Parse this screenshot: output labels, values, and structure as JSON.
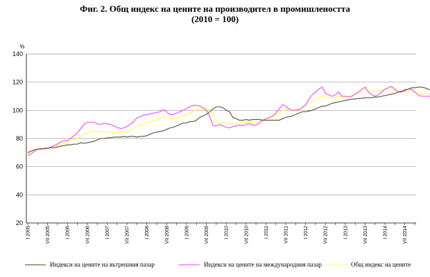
{
  "title_line1": "Фиг. 2. Общ индекс на цените на производител в промишлеността",
  "title_line2": "(2010 = 100)",
  "chart_data": {
    "type": "line",
    "unit": "%",
    "ylim": [
      20,
      140
    ],
    "yticks": [
      20,
      40,
      60,
      80,
      100,
      120,
      140
    ],
    "grid": "horizontal",
    "legend_position": "bottom",
    "x_tick_labels": [
      "I 2005",
      "VII 2005",
      "I 2006",
      "VII 2006",
      "I 2007",
      "VII 2007",
      "I 2008",
      "VII 2008",
      "I 2009",
      "VII 2009",
      "I 2010",
      "VII 2010",
      "I 2011",
      "VII 2011",
      "I 2012",
      "VII 2012",
      "I 2013",
      "VII 2013",
      "I 2014",
      "VII 2014"
    ],
    "x_start": "2005-01",
    "x_end": "2014-10",
    "series": [
      {
        "name": "Индекси на цените на вътрешния пазар",
        "color": "#505030",
        "values": [
          70,
          71,
          72,
          72.5,
          72.5,
          73,
          73,
          73.5,
          73.5,
          74,
          74.5,
          75,
          75.5,
          75.5,
          76,
          76,
          77,
          76.5,
          77,
          77.5,
          78,
          79,
          80,
          80,
          80.5,
          80.5,
          81,
          81,
          81,
          81.5,
          81,
          81.5,
          81.5,
          81,
          81.5,
          81.5,
          82,
          83,
          84,
          84.5,
          85,
          85.5,
          86.5,
          87.5,
          88,
          89,
          90,
          91,
          91,
          92,
          92,
          93,
          95,
          96,
          97,
          99,
          101,
          102.5,
          102.5,
          102,
          100,
          99,
          95,
          94,
          93,
          93,
          93.5,
          93,
          93.5,
          93.5,
          93.5,
          93,
          93,
          93,
          93,
          93,
          93,
          94,
          95,
          95.5,
          96,
          97,
          98,
          99,
          99,
          99.5,
          100,
          101,
          102,
          103,
          103,
          104,
          105,
          105.5,
          106,
          106.5,
          107,
          107.5,
          108,
          108,
          108.5,
          108.5,
          109,
          109,
          109,
          109.5,
          109.5,
          110,
          110.5,
          111,
          111.5,
          112,
          113,
          113.5,
          114.5,
          115,
          116,
          116,
          116.5,
          116.5,
          116,
          115,
          114.5,
          114,
          114,
          113.5,
          113,
          112.5,
          112.5,
          112.5,
          112.5,
          112.5,
          112,
          112,
          112,
          112,
          112,
          112,
          112,
          112,
          112,
          112,
          111.5,
          111.5,
          111.5,
          111.5,
          111.5,
          111.5
        ]
      },
      {
        "name": "Индекси на цените на международния пазар",
        "color": "#ff40ff",
        "values": [
          68,
          69,
          71,
          72.5,
          73,
          72.5,
          73,
          74,
          75,
          76,
          77.5,
          78.5,
          78.5,
          80,
          82,
          84,
          87,
          90,
          91.5,
          91.5,
          91.5,
          90.5,
          90,
          91,
          90.5,
          90,
          89,
          88,
          87,
          87.5,
          88.5,
          90,
          92,
          94.5,
          95.5,
          96.5,
          97,
          97.5,
          98,
          98.5,
          99,
          100.5,
          99,
          97,
          97,
          98,
          99,
          100,
          101.5,
          102.5,
          103.5,
          103.5,
          103,
          102,
          100,
          96,
          89,
          89,
          90,
          89,
          88,
          87.5,
          88.5,
          89,
          89.5,
          89,
          90,
          90.5,
          89.5,
          89.5,
          91,
          93,
          94,
          95,
          96,
          98,
          101,
          104,
          103,
          101,
          100,
          100,
          100.5,
          102,
          104,
          108,
          111,
          113,
          115,
          116.5,
          112,
          111,
          110,
          111,
          113,
          110,
          110,
          109.5,
          110,
          111.5,
          113,
          115,
          116.5,
          113,
          111,
          110,
          111,
          113,
          115,
          116,
          117,
          115,
          113,
          113,
          114,
          115,
          115,
          113,
          111,
          110,
          110,
          110,
          110,
          109.5,
          109.5,
          109.5,
          109.5,
          109.5,
          109,
          109,
          109,
          108.5,
          108.5,
          109,
          109,
          109,
          109.5,
          109.5,
          110,
          110.5,
          110.5,
          110.5
        ]
      },
      {
        "name": "Общ индекс на цените",
        "color": "#ffff66",
        "values": [
          69.5,
          70.5,
          71.5,
          72,
          72.5,
          73,
          73.5,
          74,
          74.5,
          75,
          76,
          77,
          77.5,
          78,
          79,
          80,
          81.5,
          83,
          84.5,
          85,
          85.5,
          85,
          85,
          85,
          85,
          84.5,
          84,
          84,
          84,
          84.5,
          85,
          86,
          87,
          88.5,
          89.5,
          90.5,
          91,
          91.5,
          92.5,
          93.5,
          94.5,
          95.5,
          95,
          94.5,
          94,
          94.5,
          95,
          96,
          97,
          98,
          99,
          100.5,
          101,
          101.5,
          101.5,
          100.5,
          97,
          92,
          91,
          91,
          91,
          90.5,
          91,
          91,
          91,
          91,
          91.5,
          91.5,
          91.5,
          91.5,
          92,
          93,
          93.5,
          94.5,
          95.5,
          97,
          98.5,
          100,
          100.5,
          100.5,
          100,
          100.5,
          101,
          102,
          103,
          105,
          106,
          107.5,
          109,
          110,
          109.5,
          109,
          109,
          109.5,
          110,
          109.5,
          109.5,
          110,
          110.5,
          111.5,
          112.5,
          113.5,
          114.5,
          114,
          113.5,
          113.5,
          114,
          114.5,
          115,
          115,
          115,
          114,
          113.5,
          113.5,
          113.5,
          113.5,
          114,
          113,
          112.5,
          112,
          112,
          112,
          112,
          111.5,
          111.5,
          111.5,
          111.5,
          111.5,
          111.5,
          111,
          111,
          111,
          111,
          111,
          111,
          111,
          111,
          111,
          111,
          111,
          111,
          111,
          111,
          111,
          111,
          111
        ]
      }
    ]
  }
}
